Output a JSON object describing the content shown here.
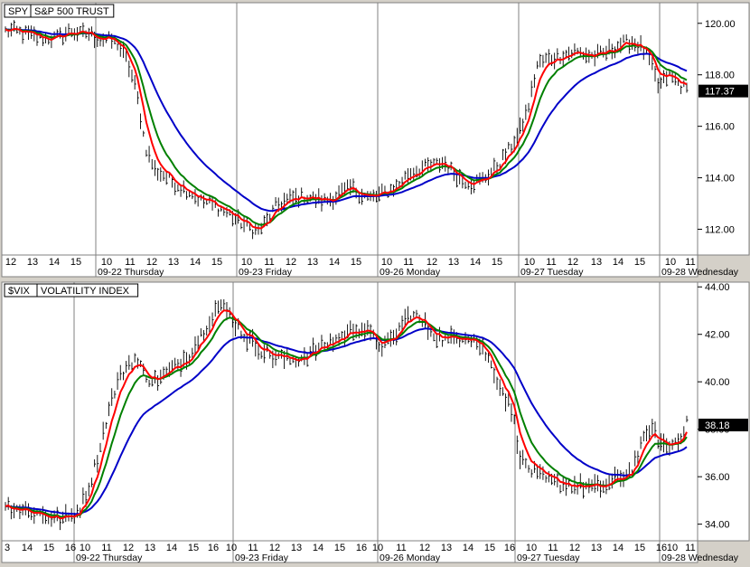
{
  "chart_data": [
    {
      "type": "line",
      "symbol": "SPY",
      "name": "S&P 500 TRUST",
      "ylim": [
        111.0,
        120.8
      ],
      "y_ticks": [
        112.0,
        114.0,
        116.0,
        118.0,
        120.0
      ],
      "y_tick_labels": [
        "112.00",
        "114.00",
        "116.00",
        "118.00",
        "120.00"
      ],
      "last_value": 117.37,
      "last_value_label": "117.37",
      "bars_per_day": 28,
      "x_tick_labels": [
        "12",
        "13",
        "14",
        "15",
        "10",
        "11",
        "12",
        "13",
        "14",
        "15",
        "10",
        "11",
        "12",
        "13",
        "14",
        "15",
        "10",
        "11",
        "12",
        "13",
        "14",
        "15",
        "10",
        "11",
        "12",
        "13",
        "14",
        "15",
        "10",
        "11"
      ],
      "day_labels": [
        "09-22 Thursday",
        "09-23 Friday",
        "09-26 Monday",
        "09-27 Tuesday",
        "09-28 Wednesday"
      ],
      "colors": {
        "price": "#000000",
        "fast": "#ff0000",
        "mid": "#008000",
        "slow": "#0000c8"
      },
      "series": [
        {
          "type": "bar",
          "values": [
            119.7,
            119.7,
            119.6,
            119.5,
            119.4,
            119.4,
            119.5,
            119.7,
            119.6,
            119.6,
            119.4,
            119.4,
            119.2,
            118.6,
            117.4,
            115.2,
            114.3,
            114.1,
            113.8,
            113.6,
            113.4,
            113.1,
            113.0,
            112.8,
            112.6,
            112.3,
            112.1,
            111.9,
            112.3,
            112.9,
            113.1,
            113.2,
            113.3,
            113.2,
            113.1,
            113.2,
            113.4,
            113.6,
            113.4,
            113.2,
            113.3,
            113.5,
            113.7,
            114.1,
            114.3,
            114.4,
            114.5,
            114.6,
            114.2,
            113.9,
            113.8,
            113.9,
            114.2,
            114.6,
            115.1,
            115.7,
            116.7,
            118.4,
            118.6,
            118.7,
            118.8,
            118.9,
            118.8,
            118.7,
            118.8,
            119.0,
            119.2,
            119.3,
            119.1,
            118.6,
            117.5,
            118.0,
            117.7,
            117.4
          ]
        }
      ]
    },
    {
      "type": "line",
      "symbol": "$VIX",
      "name": "VOLATILITY INDEX",
      "ylim": [
        33.3,
        44.2
      ],
      "y_ticks": [
        34.0,
        36.0,
        38.0,
        40.0,
        42.0,
        44.0
      ],
      "y_tick_labels": [
        "34.00",
        "36.00",
        "38.00",
        "40.00",
        "42.00",
        "44.00"
      ],
      "last_value": 38.18,
      "last_value_label": "38.18",
      "bars_per_day": 28,
      "x_tick_labels": [
        "3",
        "14",
        "15",
        "16",
        "10",
        "11",
        "12",
        "13",
        "14",
        "15",
        "16",
        "10",
        "11",
        "12",
        "13",
        "14",
        "15",
        "16",
        "10",
        "11",
        "12",
        "13",
        "14",
        "15",
        "16",
        "10",
        "11",
        "12",
        "13",
        "14",
        "15",
        "16",
        "10",
        "11"
      ],
      "day_labels": [
        "09-22 Thursday",
        "09-23 Friday",
        "09-26 Monday",
        "09-27 Tuesday",
        "09-28 Wednesday"
      ],
      "colors": {
        "price": "#000000",
        "fast": "#ff0000",
        "mid": "#008000",
        "slow": "#0000c8"
      },
      "series": [
        {
          "type": "bar",
          "values": [
            34.8,
            34.7,
            34.6,
            34.5,
            34.4,
            34.3,
            34.2,
            34.3,
            34.6,
            35.5,
            36.8,
            38.5,
            39.8,
            40.6,
            41.0,
            40.4,
            40.0,
            40.2,
            40.5,
            40.8,
            41.2,
            41.8,
            42.5,
            43.2,
            43.0,
            42.5,
            41.9,
            41.6,
            41.3,
            41.1,
            41.0,
            40.9,
            41.0,
            41.2,
            41.4,
            41.6,
            41.8,
            42.0,
            42.3,
            42.2,
            41.8,
            41.5,
            41.7,
            42.4,
            42.9,
            42.6,
            42.2,
            41.9,
            41.7,
            41.9,
            42.0,
            41.8,
            41.3,
            40.5,
            39.6,
            38.8,
            36.7,
            36.3,
            36.0,
            35.8,
            35.7,
            35.7,
            35.6,
            35.6,
            35.5,
            35.6,
            35.8,
            36.0,
            36.3,
            37.2,
            38.1,
            37.5,
            37.2,
            37.6,
            38.2
          ]
        }
      ]
    }
  ]
}
